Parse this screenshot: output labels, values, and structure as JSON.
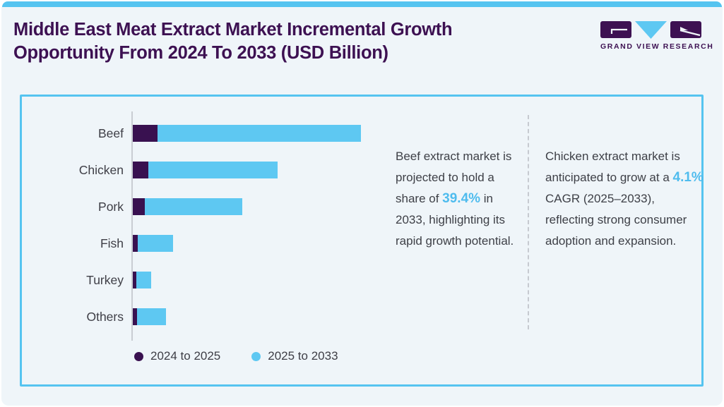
{
  "header": {
    "title": "Middle East Meat Extract Market Incremental Growth Opportunity From 2024 To 2033 (USD Billion)"
  },
  "logo": {
    "text": "GRAND VIEW RESEARCH"
  },
  "colors": {
    "accent_blue": "#55C4F0",
    "bar_dark_purple": "#391150",
    "bar_light_blue": "#5EC8F2",
    "title_purple": "#3D1152",
    "body_text": "#3E4047",
    "highlight_blue": "#4FBCEE",
    "background": "#EFF5F9"
  },
  "chart_data": {
    "type": "bar",
    "orientation": "horizontal",
    "stacked": true,
    "title": "Middle East Meat Extract Market Incremental Growth Opportunity From 2024 To 2033 (USD Billion)",
    "categories": [
      "Beef",
      "Chicken",
      "Pork",
      "Fish",
      "Turkey",
      "Others"
    ],
    "series": [
      {
        "name": "2024 to 2025",
        "color": "#391150",
        "values": [
          35,
          22,
          17,
          7,
          5,
          6
        ]
      },
      {
        "name": "2025 to 2033",
        "color": "#5EC8F2",
        "values": [
          288,
          183,
          138,
          50,
          21,
          41
        ]
      }
    ],
    "legend_position": "bottom",
    "value_axis_visible": false,
    "grid": false,
    "note": "Value axis is unlabeled in the source image; values are relative bar lengths in pixels estimated from the chart.",
    "pixel_scale": 1
  },
  "legend": [
    {
      "label": "2024 to 2025",
      "color": "#391150"
    },
    {
      "label": "2025 to 2033",
      "color": "#5EC8F2"
    }
  ],
  "insights": [
    {
      "segments": [
        {
          "text": "Beef extract market is projected to hold a share of ",
          "highlight": false
        },
        {
          "text": "39.4%",
          "highlight": true
        },
        {
          "text": " in 2033, highlighting its rapid growth potential.",
          "highlight": false
        }
      ]
    },
    {
      "segments": [
        {
          "text": "Chicken extract market is anticipated to grow at a ",
          "highlight": false
        },
        {
          "text": "4.1%",
          "highlight": true
        },
        {
          "text": " CAGR (2025–2033), reflecting strong consumer adoption and expansion.",
          "highlight": false
        }
      ]
    }
  ]
}
